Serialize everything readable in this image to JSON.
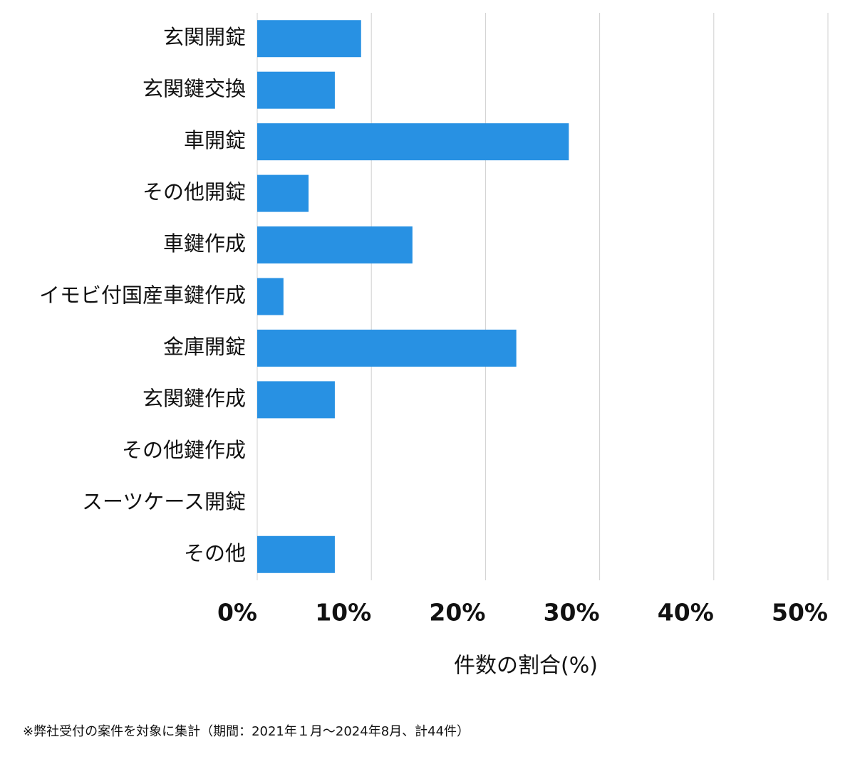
{
  "chart_data": {
    "type": "bar",
    "orientation": "horizontal",
    "categories": [
      "玄関開錠",
      "玄関鍵交換",
      "車開錠",
      "その他開錠",
      "車鍵作成",
      "イモビ付国産車鍵作成",
      "金庫開錠",
      "玄関鍵作成",
      "その他鍵作成",
      "スーツケース開錠",
      "その他"
    ],
    "values": [
      9.1,
      6.8,
      27.3,
      4.5,
      13.6,
      2.3,
      22.7,
      6.8,
      0,
      0,
      6.8
    ],
    "color": "#2891e3",
    "xlim": [
      0,
      50
    ],
    "xticks": [
      {
        "value": 0,
        "label": "0%"
      },
      {
        "value": 10,
        "label": "10%"
      },
      {
        "value": 20,
        "label": "20%"
      },
      {
        "value": 30,
        "label": "30%"
      },
      {
        "value": 40,
        "label": "40%"
      },
      {
        "value": 50,
        "label": "50%"
      }
    ],
    "grid": true,
    "xlabel": "件数の割合(%)",
    "note": "※弊社受付の案件を対象に集計（期間：2021年１月～2024年8月、計44件）"
  }
}
